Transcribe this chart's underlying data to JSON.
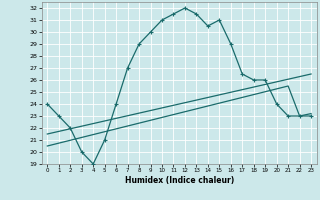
{
  "xlabel": "Humidex (Indice chaleur)",
  "background_color": "#cce8ea",
  "grid_color": "#ffffff",
  "line_color": "#1a6b6b",
  "xlim": [
    -0.5,
    23.5
  ],
  "ylim": [
    19,
    32.5
  ],
  "yticks": [
    19,
    20,
    21,
    22,
    23,
    24,
    25,
    26,
    27,
    28,
    29,
    30,
    31,
    32
  ],
  "xticks": [
    0,
    1,
    2,
    3,
    4,
    5,
    6,
    7,
    8,
    9,
    10,
    11,
    12,
    13,
    14,
    15,
    16,
    17,
    18,
    19,
    20,
    21,
    22,
    23
  ],
  "curve1_x": [
    0,
    1,
    2,
    3,
    4,
    5,
    6,
    7,
    8,
    9,
    10,
    11,
    12,
    13,
    14,
    15,
    16,
    17,
    18,
    19,
    20,
    21,
    22,
    23
  ],
  "curve1_y": [
    24,
    23,
    22,
    20,
    19,
    21,
    24,
    27,
    29,
    30,
    31,
    31.5,
    32,
    31.5,
    30.5,
    31,
    29,
    26.5,
    26,
    26,
    24,
    23,
    23,
    23
  ],
  "curve2_x": [
    0,
    23
  ],
  "curve2_y": [
    21.5,
    26.5
  ],
  "curve3_x": [
    0,
    21,
    22,
    23
  ],
  "curve3_y": [
    20.5,
    25.5,
    23.0,
    23.2
  ]
}
